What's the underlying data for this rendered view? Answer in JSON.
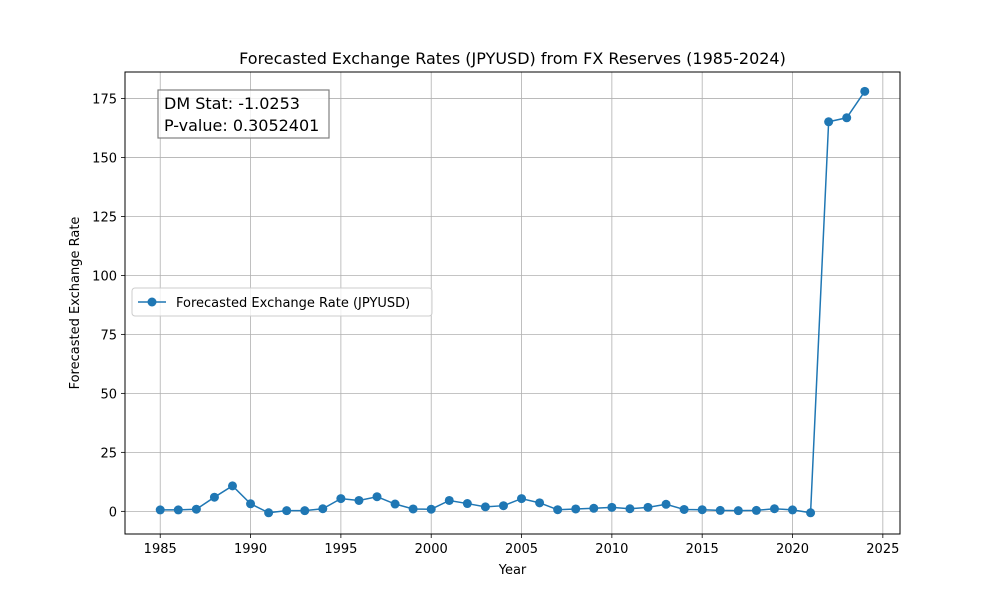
{
  "chart_data": {
    "type": "line",
    "title": "Forecasted Exchange Rates (JPYUSD) from FX Reserves (1985-2024)",
    "xlabel": "Year",
    "ylabel": "Forecasted Exchange Rate",
    "xlim": [
      1983.05,
      2025.95
    ],
    "ylim": [
      -9.6,
      186.2
    ],
    "xticks": [
      1985,
      1990,
      1995,
      2000,
      2005,
      2010,
      2015,
      2020,
      2025
    ],
    "yticks": [
      0,
      25,
      50,
      75,
      100,
      125,
      150,
      175
    ],
    "grid": true,
    "legend_position": "center-left",
    "series": [
      {
        "name": "Forecasted Exchange Rate (JPYUSD)",
        "color": "#1f77b4",
        "x": [
          1985,
          1986,
          1987,
          1988,
          1989,
          1990,
          1991,
          1992,
          1993,
          1994,
          1995,
          1996,
          1997,
          1998,
          1999,
          2000,
          2001,
          2002,
          2003,
          2004,
          2005,
          2006,
          2007,
          2008,
          2009,
          2010,
          2011,
          2012,
          2013,
          2014,
          2015,
          2016,
          2017,
          2018,
          2019,
          2020,
          2021,
          2022,
          2023,
          2024
        ],
        "y": [
          0.6,
          0.6,
          0.9,
          6.0,
          10.8,
          3.2,
          -0.6,
          0.3,
          0.3,
          1.1,
          5.4,
          4.6,
          6.2,
          3.1,
          1.0,
          0.9,
          4.6,
          3.3,
          1.9,
          2.4,
          5.4,
          3.6,
          0.7,
          1.0,
          1.3,
          1.7,
          1.1,
          1.7,
          3.0,
          0.8,
          0.7,
          0.4,
          0.3,
          0.4,
          1.1,
          0.6,
          -0.6,
          165.1,
          166.8,
          178.0
        ]
      }
    ],
    "annotation": {
      "line1": "DM Stat: -1.0253",
      "line2": "P-value: 0.3052401"
    }
  }
}
